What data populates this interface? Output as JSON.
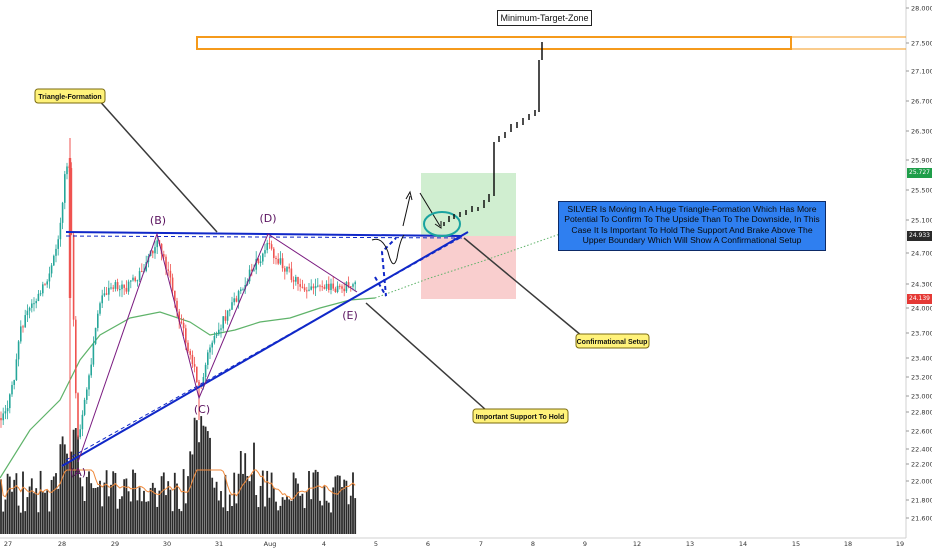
{
  "chart_data": {
    "type": "candlestick",
    "y_axis": {
      "ticks": [
        "28.000",
        "27.500",
        "27.100",
        "26.700",
        "26.300",
        "25.900",
        "25.500",
        "25.100",
        "24.700",
        "24.300",
        "24.000",
        "23.700",
        "23.400",
        "23.200",
        "23.000",
        "22.800",
        "22.600",
        "22.400",
        "22.200",
        "22.000",
        "21.800",
        "21.600"
      ],
      "last_price": "25.727",
      "upper_boundary_price": "24.933",
      "support_price": "24.139"
    },
    "x_axis": {
      "ticks": [
        "27",
        "28",
        "29",
        "30",
        "31",
        "Aug",
        "4",
        "5",
        "6",
        "7",
        "8",
        "9",
        "12",
        "13",
        "14",
        "15",
        "18",
        "19"
      ]
    },
    "labels": {
      "minimum_target_zone": "Minimum-Target-Zone",
      "triangle_formation": "Triangle-Formation",
      "confirmational_setup": "Confirmational Setup",
      "important_support": "Important Support To Hold",
      "wave_A": "(A)",
      "wave_B": "(B)",
      "wave_C": "(C)",
      "wave_D": "(D)",
      "wave_E": "(E)"
    },
    "description": "SILVER Is Moving In A Huge Triangle-Formation Which Has More Potential To Confirm To The Upside Than To The Downside, In This Case It Is Important To Hold The Support And Brake Above The Upper Boundary Which Will Show A Confirmational Setup",
    "colors": {
      "up_candle": "#26a69a",
      "down_candle": "#ef5350",
      "boundary": "#1028c8",
      "wave_path": "#7a1b80",
      "moving_average": "#5fb36a",
      "volume": "#2a2a2a",
      "volume_ma": "#f08a3c",
      "target_zone": "#f59a1b",
      "profit_zone": "#c8ebc8",
      "loss_zone": "#f8c6c6",
      "callout": "#fff27a"
    }
  }
}
